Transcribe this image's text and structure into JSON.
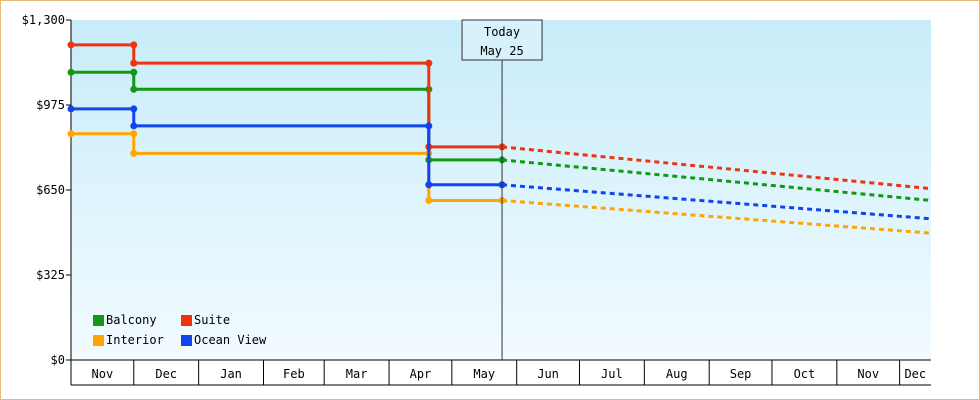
{
  "chart_data": {
    "type": "line",
    "step": true,
    "y_tick_labels": [
      "$0",
      "$325",
      "$650",
      "$975",
      "$1,300"
    ],
    "y_ticks": [
      0,
      325,
      650,
      975,
      1300
    ],
    "ylim": [
      0,
      1300
    ],
    "x_months": [
      {
        "label": "Nov",
        "start": "2023-11-01",
        "end": "2023-12-01"
      },
      {
        "label": "Dec",
        "start": "2023-12-01",
        "end": "2024-01-01"
      },
      {
        "label": "Jan",
        "start": "2024-01-01",
        "end": "2024-02-01"
      },
      {
        "label": "Feb",
        "start": "2024-02-01",
        "end": "2024-03-01"
      },
      {
        "label": "Mar",
        "start": "2024-03-01",
        "end": "2024-04-01"
      },
      {
        "label": "Apr",
        "start": "2024-04-01",
        "end": "2024-05-01"
      },
      {
        "label": "May",
        "start": "2024-05-01",
        "end": "2024-06-01"
      },
      {
        "label": "Jun",
        "start": "2024-06-01",
        "end": "2024-07-01"
      },
      {
        "label": "Jul",
        "start": "2024-07-01",
        "end": "2024-08-01"
      },
      {
        "label": "Aug",
        "start": "2024-08-01",
        "end": "2024-09-01"
      },
      {
        "label": "Sep",
        "start": "2024-09-01",
        "end": "2024-10-01"
      },
      {
        "label": "Oct",
        "start": "2024-10-01",
        "end": "2024-11-01"
      },
      {
        "label": "Nov",
        "start": "2024-11-01",
        "end": "2024-12-01"
      },
      {
        "label": "Dec",
        "start": "2024-12-01",
        "end": "2024-12-16"
      }
    ],
    "xlim": [
      "2023-11-01",
      "2024-12-16"
    ],
    "today": {
      "date": "2024-05-25",
      "line1": "Today",
      "line2": "May 25"
    },
    "legend_position": "bottom-left",
    "grid": false,
    "series": [
      {
        "name": "Balcony",
        "color": "#119911",
        "points": [
          {
            "date": "2023-11-01",
            "value": 1100
          },
          {
            "date": "2023-12-01",
            "value": 1100
          },
          {
            "date": "2023-12-01",
            "value": 1035
          },
          {
            "date": "2024-04-20",
            "value": 1035
          },
          {
            "date": "2024-04-20",
            "value": 765
          },
          {
            "date": "2024-05-25",
            "value": 765
          }
        ],
        "forecast": [
          {
            "date": "2024-05-25",
            "value": 765
          },
          {
            "date": "2024-12-16",
            "value": 610
          }
        ]
      },
      {
        "name": "Suite",
        "color": "#ee3311",
        "points": [
          {
            "date": "2023-11-01",
            "value": 1205
          },
          {
            "date": "2023-12-01",
            "value": 1205
          },
          {
            "date": "2023-12-01",
            "value": 1135
          },
          {
            "date": "2024-04-20",
            "value": 1135
          },
          {
            "date": "2024-04-20",
            "value": 815
          },
          {
            "date": "2024-05-25",
            "value": 815
          }
        ],
        "forecast": [
          {
            "date": "2024-05-25",
            "value": 815
          },
          {
            "date": "2024-12-16",
            "value": 655
          }
        ]
      },
      {
        "name": "Interior",
        "color": "#ffa500",
        "points": [
          {
            "date": "2023-11-01",
            "value": 865
          },
          {
            "date": "2023-12-01",
            "value": 865
          },
          {
            "date": "2023-12-01",
            "value": 790
          },
          {
            "date": "2024-04-20",
            "value": 790
          },
          {
            "date": "2024-04-20",
            "value": 610
          },
          {
            "date": "2024-05-25",
            "value": 610
          }
        ],
        "forecast": [
          {
            "date": "2024-05-25",
            "value": 610
          },
          {
            "date": "2024-12-16",
            "value": 485
          }
        ]
      },
      {
        "name": "Ocean View",
        "color": "#1144ee",
        "points": [
          {
            "date": "2023-11-01",
            "value": 960
          },
          {
            "date": "2023-12-01",
            "value": 960
          },
          {
            "date": "2023-12-01",
            "value": 895
          },
          {
            "date": "2024-04-20",
            "value": 895
          },
          {
            "date": "2024-04-20",
            "value": 670
          },
          {
            "date": "2024-05-25",
            "value": 670
          }
        ],
        "forecast": [
          {
            "date": "2024-05-25",
            "value": 670
          },
          {
            "date": "2024-12-16",
            "value": 540
          }
        ]
      }
    ],
    "legend_order": [
      0,
      1,
      2,
      3
    ]
  }
}
